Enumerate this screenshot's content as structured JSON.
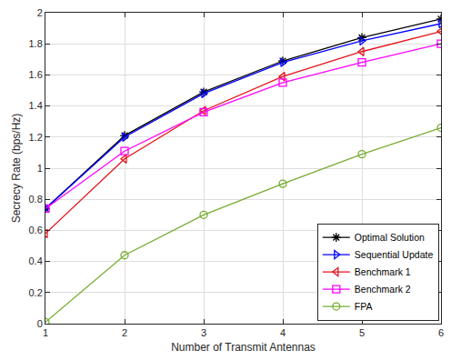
{
  "chart_data": {
    "type": "line",
    "x_label": "Number of Transmit Antennas",
    "y_label": "Secrecy Rate (bps/Hz)",
    "x": [
      1,
      2,
      3,
      4,
      5,
      6
    ],
    "xlim": [
      1,
      6
    ],
    "xticks": [
      1,
      2,
      3,
      4,
      5,
      6
    ],
    "ylim": [
      0,
      2
    ],
    "yticks": [
      0,
      0.2,
      0.4,
      0.6,
      0.8,
      1,
      1.2,
      1.4,
      1.6,
      1.8,
      2
    ],
    "grid": true,
    "legend": "lower right",
    "series": [
      {
        "name": "Optimal Solution",
        "color": "#000000",
        "marker": "asterisk",
        "line_style": "solid",
        "values": [
          0.74,
          1.21,
          1.49,
          1.69,
          1.84,
          1.96
        ]
      },
      {
        "name": "Sequential Update",
        "color": "#0000ff",
        "marker": "triangle-right",
        "line_style": "solid",
        "values": [
          0.74,
          1.2,
          1.48,
          1.68,
          1.82,
          1.93
        ]
      },
      {
        "name": "Benchmark 1",
        "color": "#e3141b",
        "marker": "triangle-left",
        "line_style": "solid",
        "values": [
          0.58,
          1.06,
          1.37,
          1.59,
          1.75,
          1.88
        ]
      },
      {
        "name": "Benchmark 2",
        "color": "#ff00ff",
        "marker": "square",
        "line_style": "solid",
        "values": [
          0.74,
          1.11,
          1.36,
          1.55,
          1.68,
          1.8
        ]
      },
      {
        "name": "FPA",
        "color": "#77ac30",
        "marker": "circle",
        "line_style": "solid",
        "values": [
          0.01,
          0.44,
          0.7,
          0.9,
          1.09,
          1.26
        ]
      }
    ]
  }
}
